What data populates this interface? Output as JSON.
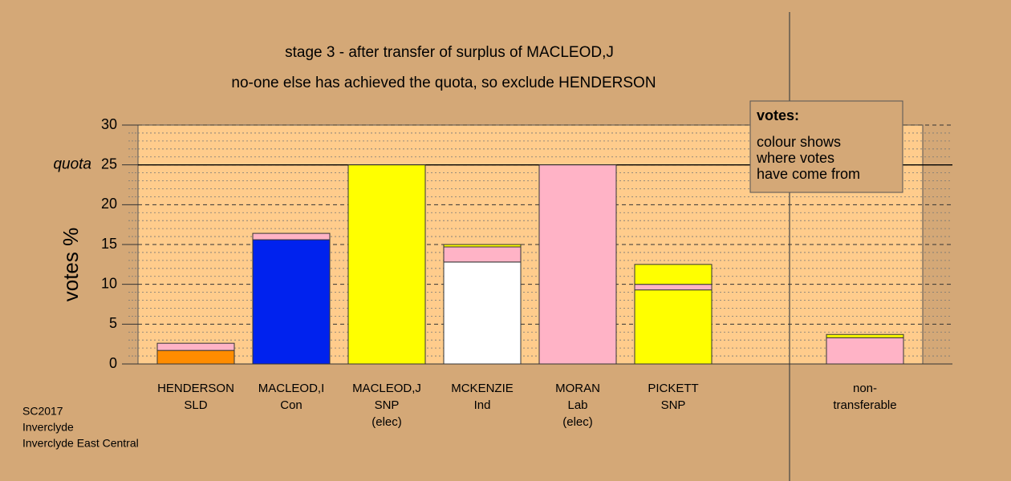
{
  "chart_data": {
    "type": "bar",
    "stacked": true,
    "title": "stage 3 - after transfer of surplus of MACLEOD,J",
    "subtitle": "no-one else has achieved the quota, so exclude HENDERSON",
    "y_label": "votes %",
    "ylim": [
      0,
      30
    ],
    "yticks": [
      0,
      5,
      10,
      15,
      20,
      25,
      30
    ],
    "minor_yticks": [
      1,
      2,
      3,
      4,
      6,
      7,
      8,
      9,
      11,
      12,
      13,
      14,
      16,
      17,
      18,
      19,
      21,
      22,
      23,
      24,
      26,
      27,
      28,
      29
    ],
    "quota": 25,
    "quota_label": "quota",
    "bars": [
      {
        "label": [
          "HENDERSON",
          "SLD"
        ],
        "segments": [
          {
            "color": "#ff8c00",
            "value": 1.7
          },
          {
            "color": "#ffb3c6",
            "value": 0.9
          }
        ]
      },
      {
        "label": [
          "MACLEOD,I",
          "Con"
        ],
        "segments": [
          {
            "color": "#0022ee",
            "value": 15.6
          },
          {
            "color": "#ffb3c6",
            "value": 0.8
          }
        ]
      },
      {
        "label": [
          "MACLEOD,J",
          "SNP",
          "(elec)"
        ],
        "segments": [
          {
            "color": "#ffff00",
            "value": 25
          }
        ]
      },
      {
        "label": [
          "MCKENZIE",
          "Ind"
        ],
        "segments": [
          {
            "color": "#ffffff",
            "value": 12.8
          },
          {
            "color": "#ffb3c6",
            "value": 1.9
          },
          {
            "color": "#ffff00",
            "value": 0.3
          }
        ]
      },
      {
        "label": [
          "MORAN",
          "Lab",
          "(elec)"
        ],
        "segments": [
          {
            "color": "#ffb3c6",
            "value": 25
          }
        ]
      },
      {
        "label": [
          "PICKETT",
          "SNP"
        ],
        "segments": [
          {
            "color": "#ffff00",
            "value": 9.3
          },
          {
            "color": "#ffb3c6",
            "value": 0.7
          },
          {
            "color": "#ffff00",
            "value": 2.5
          }
        ]
      },
      {
        "label": [
          "non-",
          "transferable"
        ],
        "segments": [
          {
            "color": "#ffb3c6",
            "value": 3.3
          },
          {
            "color": "#ffff00",
            "value": 0.4
          }
        ]
      }
    ],
    "legend": {
      "title": "votes:",
      "lines": [
        "colour shows",
        "where votes",
        "have come from"
      ]
    },
    "footer": [
      "SC2017",
      "Inverclyde",
      "Inverclyde East Central"
    ]
  }
}
